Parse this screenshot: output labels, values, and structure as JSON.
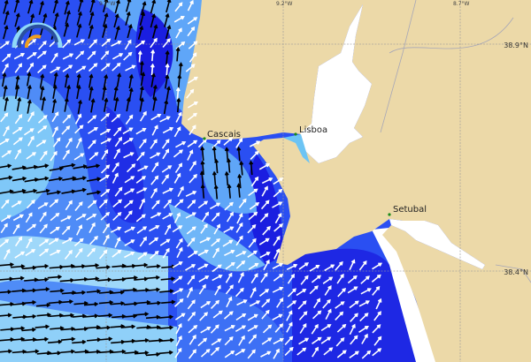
{
  "map": {
    "places": [
      {
        "name": "Cascais"
      },
      {
        "name": "Lisboa"
      },
      {
        "name": "Setubal"
      }
    ],
    "longitude_labels": [
      "9.7°W",
      "9.2°W",
      "8.7°W"
    ],
    "latitude_labels": [
      "38.9°N",
      "38.4°N"
    ],
    "colors": {
      "land": "#ecd9a8",
      "deep_ocean": "#1a1ee0",
      "mid_ocean": "#2f5cf5",
      "shallow_ocean": "#7fc8f8",
      "estuary": "#ffffff",
      "town_marker": "#1a8a1a"
    },
    "icons": [
      "logo-icon",
      "wave-direction-arrow-icon"
    ]
  }
}
